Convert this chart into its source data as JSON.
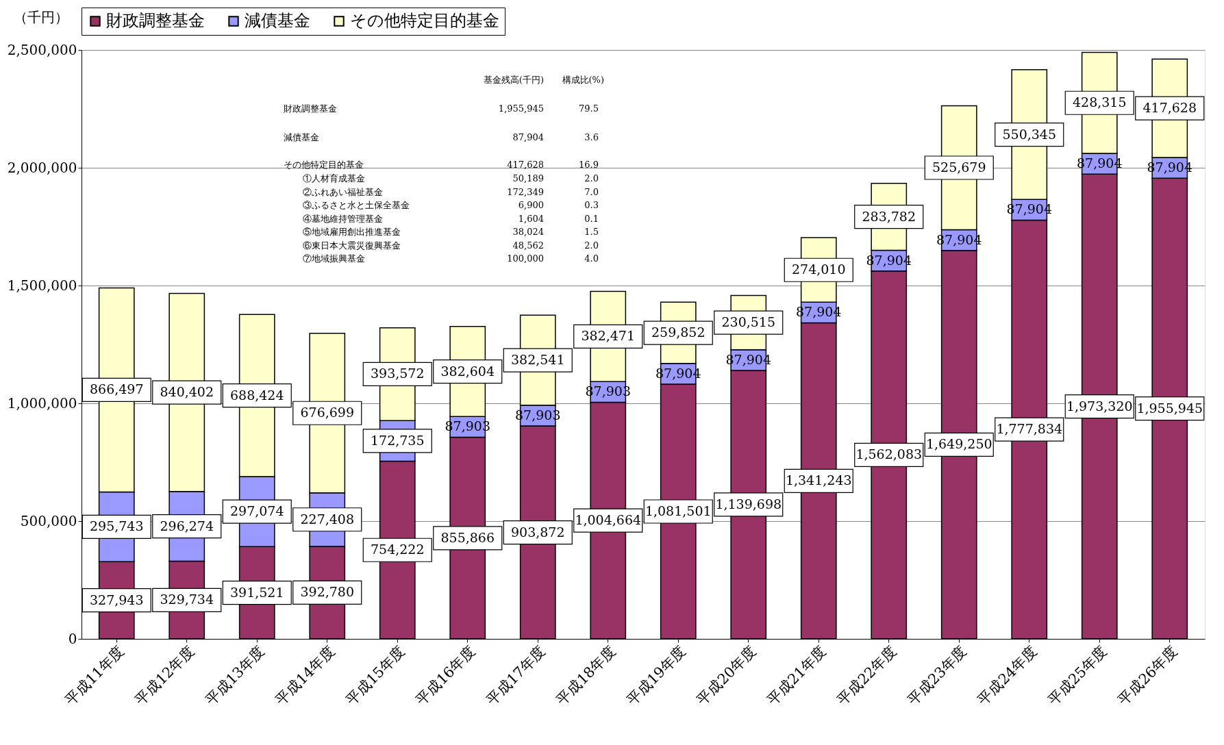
{
  "chart_data": {
    "type": "bar",
    "stacked": true,
    "ylabel": "（千円）",
    "categories": [
      "平成11年度",
      "平成12年度",
      "平成13年度",
      "平成14年度",
      "平成15年度",
      "平成16年度",
      "平成17年度",
      "平成18年度",
      "平成19年度",
      "平成20年度",
      "平成21年度",
      "平成22年度",
      "平成23年度",
      "平成24年度",
      "平成25年度",
      "平成26年度"
    ],
    "series": [
      {
        "name": "財政調整基金",
        "color": "#993366",
        "values": [
          327943,
          329734,
          391521,
          392780,
          754222,
          855866,
          903872,
          1004664,
          1081501,
          1139698,
          1341243,
          1562083,
          1649250,
          1777834,
          1973320,
          1955945
        ],
        "value_labels": [
          "327,943",
          "329,734",
          "391,521",
          "392,780",
          "754,222",
          "855,866",
          "903,872",
          "1,004,664",
          "1,081,501",
          "1,139,698",
          "1,341,243",
          "1,562,083",
          "1,649,250",
          "1,777,834",
          "1,973,320",
          "1,955,945"
        ]
      },
      {
        "name": "減債基金",
        "color": "#9999ff",
        "values": [
          295743,
          296274,
          297074,
          227408,
          172735,
          87903,
          87903,
          87903,
          87904,
          87904,
          87904,
          87904,
          87904,
          87904,
          87904,
          87904
        ],
        "value_labels": [
          "295,743",
          "296,274",
          "297,074",
          "227,408",
          "172,735",
          "87,903",
          "87,903",
          "87,903",
          "87,904",
          "87,904",
          "87,904",
          "87,904",
          "87,904",
          "87,904",
          "87,904",
          "87,904"
        ]
      },
      {
        "name": "その他特定目的基金",
        "color": "#ffffcc",
        "values": [
          866497,
          840402,
          688424,
          676699,
          393572,
          382604,
          382541,
          382471,
          259852,
          230515,
          274010,
          283782,
          525679,
          550345,
          428315,
          417628
        ],
        "value_labels": [
          "866,497",
          "840,402",
          "688,424",
          "676,699",
          "393,572",
          "382,604",
          "382,541",
          "382,471",
          "259,852",
          "230,515",
          "274,010",
          "283,782",
          "525,679",
          "550,345",
          "428,315",
          "417,628"
        ]
      }
    ],
    "ylim": [
      0,
      2500000
    ],
    "yticks": [
      {
        "value": 0,
        "label": "0"
      },
      {
        "value": 500000,
        "label": "500,000"
      },
      {
        "value": 1000000,
        "label": "1,000,000"
      },
      {
        "value": 1500000,
        "label": "1,500,000"
      },
      {
        "value": 2000000,
        "label": "2,000,000"
      },
      {
        "value": 2500000,
        "label": "2,500,000"
      }
    ],
    "grid": "y",
    "legend": "top",
    "annotations": [
      "基金残高(千円)",
      "構成比(%)",
      "財政調整基金",
      "1,955,945",
      "79.5",
      "減債基金",
      "87,904",
      "3.6",
      "その他特定目的基金",
      "417,628",
      "16.9",
      "①人材育成基金",
      "50,189",
      "2.0",
      "②ふれあい福祉基金",
      "172,349",
      "7.0",
      "③ふるさと水と土保全基金",
      "6,900",
      "0.3",
      "④墓地維持管理基金",
      "1,604",
      "0.1",
      "⑤地域雇用創出推進基金",
      "38,024",
      "1.5",
      "⑥東日本大震災復興基金",
      "48,562",
      "2.0",
      "⑦地域振興基金",
      "100,000",
      "4.0"
    ]
  }
}
